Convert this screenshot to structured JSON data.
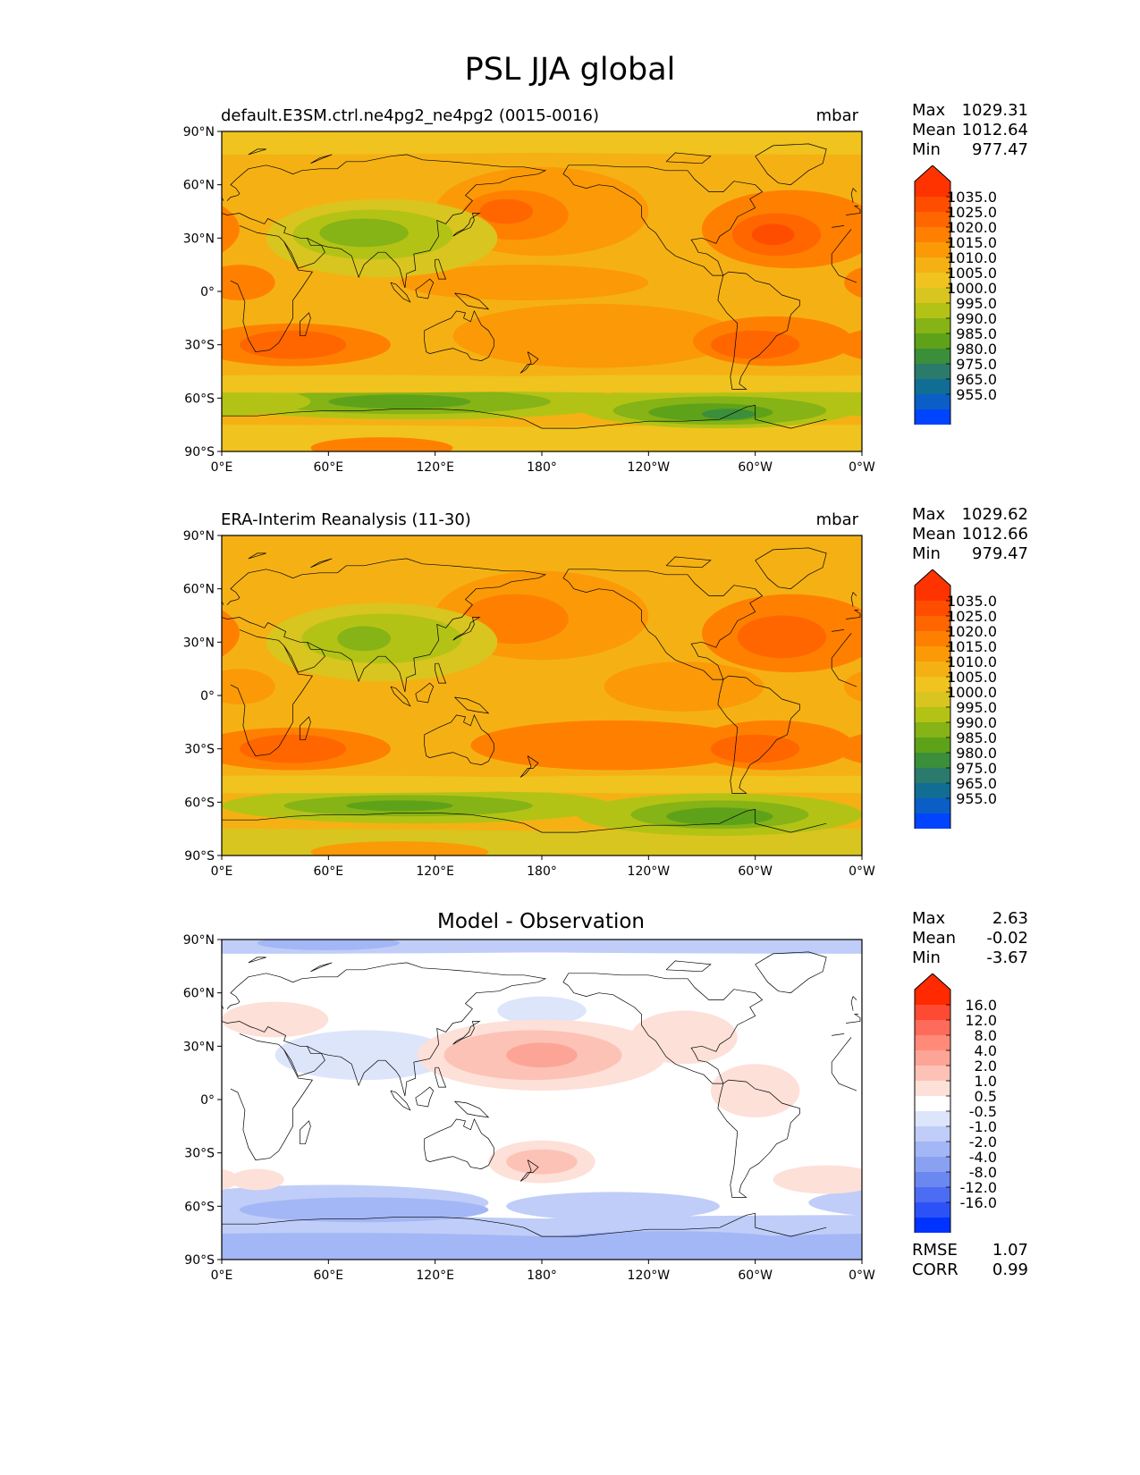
{
  "title": "PSL JJA global",
  "panels": [
    {
      "label": "default.E3SM.ctrl.ne4pg2_ne4pg2 (0015-0016)",
      "units": "mbar",
      "stats": [
        {
          "key": "Max",
          "value": "1029.31"
        },
        {
          "key": "Mean",
          "value": "1012.64"
        },
        {
          "key": "Min",
          "value": "977.47"
        }
      ],
      "colorbar": {
        "labels": [
          "1035.0",
          "1025.0",
          "1020.0",
          "1015.0",
          "1010.0",
          "1005.0",
          "1000.0",
          "995.0",
          "990.0",
          "985.0",
          "980.0",
          "975.0",
          "965.0",
          "955.0"
        ],
        "colors": [
          "#ff3300",
          "#ff4d00",
          "#ff6600",
          "#ff8000",
          "#fb9a06",
          "#f5b114",
          "#f0c31f",
          "#d9c51f",
          "#b3c316",
          "#86b315",
          "#5ea21a",
          "#3b8e3a",
          "#2a7b6b",
          "#116d94",
          "#0a5ec6",
          "#0044ff"
        ]
      },
      "map": {
        "type": "model"
      }
    },
    {
      "label": "ERA-Interim Reanalysis (11-30)",
      "units": "mbar",
      "stats": [
        {
          "key": "Max",
          "value": "1029.62"
        },
        {
          "key": "Mean",
          "value": "1012.66"
        },
        {
          "key": "Min",
          "value": "979.47"
        }
      ],
      "colorbar": {
        "labels": [
          "1035.0",
          "1025.0",
          "1020.0",
          "1015.0",
          "1010.0",
          "1005.0",
          "1000.0",
          "995.0",
          "990.0",
          "985.0",
          "980.0",
          "975.0",
          "965.0",
          "955.0"
        ],
        "colors": [
          "#ff3300",
          "#ff4d00",
          "#ff6600",
          "#ff8000",
          "#fb9a06",
          "#f5b114",
          "#f0c31f",
          "#d9c51f",
          "#b3c316",
          "#86b315",
          "#5ea21a",
          "#3b8e3a",
          "#2a7b6b",
          "#116d94",
          "#0a5ec6",
          "#0044ff"
        ]
      },
      "map": {
        "type": "obs"
      }
    },
    {
      "label": "Model - Observation",
      "units": "",
      "stats": [
        {
          "key": "Max",
          "value": "2.63"
        },
        {
          "key": "Mean",
          "value": "-0.02"
        },
        {
          "key": "Min",
          "value": "-3.67"
        }
      ],
      "extra_stats": [
        {
          "key": "RMSE",
          "value": "1.07"
        },
        {
          "key": "CORR",
          "value": "0.99"
        }
      ],
      "colorbar": {
        "labels": [
          "16.0",
          "12.0",
          "8.0",
          "4.0",
          "2.0",
          "1.0",
          "0.5",
          "-0.5",
          "-1.0",
          "-2.0",
          "-4.0",
          "-8.0",
          "-12.0",
          "-16.0"
        ],
        "colors": [
          "#ff2a00",
          "#ff4a33",
          "#ff6b5a",
          "#ff8a78",
          "#fca597",
          "#fdc2b6",
          "#fde0d8",
          "#ffffff",
          "#dde5fb",
          "#bfcdf8",
          "#a3b6f5",
          "#8aa1f2",
          "#6b88f0",
          "#4b6cf3",
          "#2c52f7",
          "#0033ff"
        ]
      },
      "map": {
        "type": "diff"
      }
    }
  ],
  "axes": {
    "lat_ticks": [
      "90°N",
      "60°N",
      "30°N",
      "0°",
      "30°S",
      "60°S",
      "90°S"
    ],
    "lon_ticks": [
      "0°E",
      "60°E",
      "120°E",
      "180°",
      "120°W",
      "60°W",
      "0°W"
    ]
  }
}
